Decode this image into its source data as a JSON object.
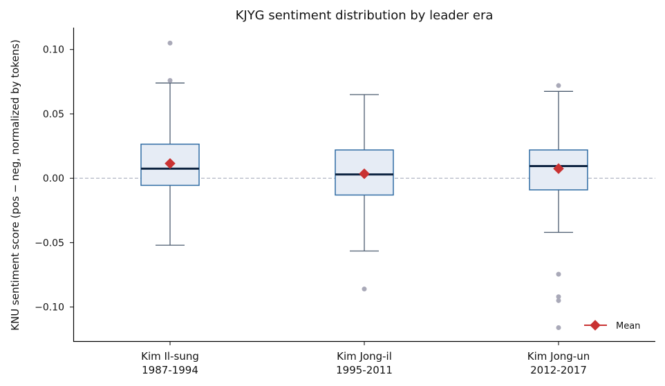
{
  "chart_data": {
    "type": "box",
    "title": "KJYG sentiment distribution by leader era",
    "xlabel": "",
    "ylabel": "KNU sentiment score (pos − neg, normalized by tokens)",
    "ylim": [
      -0.127,
      0.117
    ],
    "yticks": [
      0.1,
      0.05,
      0.0,
      -0.05,
      -0.1
    ],
    "ytick_labels": [
      "0.10",
      "0.05",
      "0.00",
      "−0.05",
      "−0.10"
    ],
    "zero_line": true,
    "grid": false,
    "legend": {
      "placement": "bottom-right",
      "entries": [
        "Mean"
      ]
    },
    "colors": {
      "box_fill": "#e6ecf5",
      "box_edge": "#2e6ba3",
      "whisker": "#4a5a6e",
      "median": "#0d2340",
      "mean": "#c93232",
      "outlier": "#a9a9b8",
      "zero_line": "#9aa0b4"
    },
    "categories": [
      {
        "line1": "Kim Il-sung",
        "line2": "1987-1994"
      },
      {
        "line1": "Kim Jong-il",
        "line2": "1995-2011"
      },
      {
        "line1": "Kim Jong-un",
        "line2": "2012-2017"
      }
    ],
    "boxes": [
      {
        "whisker_low": -0.052,
        "q1": -0.0055,
        "median": 0.0075,
        "q3": 0.0265,
        "whisker_high": 0.074,
        "mean": 0.0115,
        "outliers": [
          0.105,
          0.076
        ]
      },
      {
        "whisker_low": -0.0565,
        "q1": -0.013,
        "median": 0.003,
        "q3": 0.022,
        "whisker_high": 0.065,
        "mean": 0.0035,
        "outliers": [
          -0.086
        ]
      },
      {
        "whisker_low": -0.042,
        "q1": -0.009,
        "median": 0.0095,
        "q3": 0.022,
        "whisker_high": 0.0675,
        "mean": 0.0075,
        "outliers": [
          0.072,
          -0.0745,
          -0.092,
          -0.095,
          -0.116
        ]
      }
    ]
  }
}
